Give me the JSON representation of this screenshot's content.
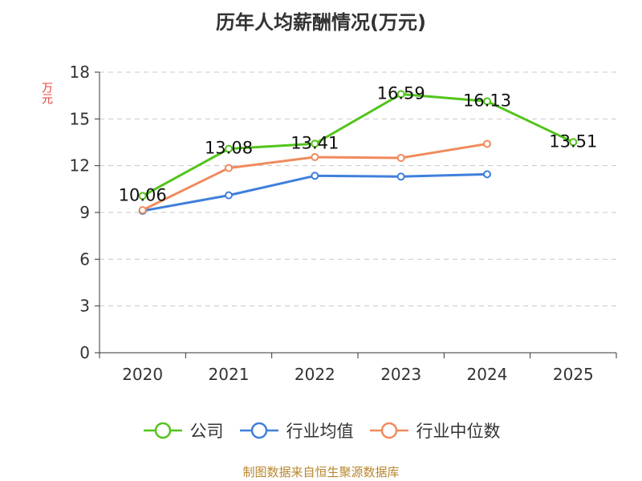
{
  "title": "历年人均薪酬情况(万元)",
  "y_unit_label": "万元",
  "source": "制图数据来自恒生聚源数据库",
  "legend": [
    {
      "label": "公司",
      "color": "#52c41a",
      "icon": "circle-line-icon"
    },
    {
      "label": "行业均值",
      "color": "#3f7fdb",
      "icon": "circle-line-icon"
    },
    {
      "label": "行业中位数",
      "color": "#f08a5d",
      "icon": "circle-line-icon"
    }
  ],
  "chart_data": {
    "type": "line",
    "title": "历年人均薪酬情况(万元)",
    "ylabel": "万元",
    "xlabel": "",
    "ylim": [
      0,
      18
    ],
    "yticks": [
      0,
      3,
      6,
      9,
      12,
      15,
      18
    ],
    "categories": [
      "2020",
      "2021",
      "2022",
      "2023",
      "2024",
      "2025"
    ],
    "grid": true,
    "legend_position": "bottom",
    "series": [
      {
        "name": "公司",
        "color": "#52c41a",
        "values": [
          10.06,
          13.08,
          13.41,
          16.59,
          16.13,
          13.51
        ],
        "show_labels": true
      },
      {
        "name": "行业均值",
        "color": "#3f7fdb",
        "values": [
          9.1,
          10.1,
          11.35,
          11.3,
          11.45,
          null
        ],
        "show_labels": false
      },
      {
        "name": "行业中位数",
        "color": "#f08a5d",
        "values": [
          9.15,
          11.85,
          12.55,
          12.5,
          13.4,
          null
        ],
        "show_labels": false
      }
    ]
  }
}
